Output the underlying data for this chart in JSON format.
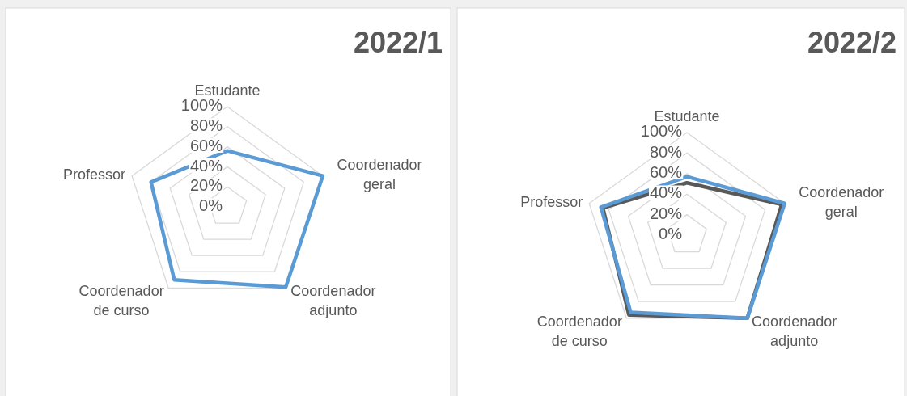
{
  "chart_data": [
    {
      "type": "radar",
      "title": "2022/1",
      "categories": [
        "Estudante",
        "Coordenador geral",
        "Coordenador adjunto",
        "Coordenador de curso",
        "Professor"
      ],
      "ylim": [
        0,
        100
      ],
      "yticks": [
        {
          "value": 0,
          "label": "0%"
        },
        {
          "value": 20,
          "label": "20%"
        },
        {
          "value": 40,
          "label": "40%"
        },
        {
          "value": 60,
          "label": "60%"
        },
        {
          "value": 80,
          "label": "80%"
        },
        {
          "value": 100,
          "label": "100%"
        }
      ],
      "grid": true,
      "series": [
        {
          "color": "#5b9bd5",
          "values": [
            56,
            100,
            99,
            90,
            80
          ]
        }
      ]
    },
    {
      "type": "radar",
      "title": "2022/2",
      "categories": [
        "Estudante",
        "Coordenador geral",
        "Coordenador adjunto",
        "Coordenador de curso",
        "Professor"
      ],
      "ylim": [
        0,
        100
      ],
      "yticks": [
        {
          "value": 0,
          "label": "0%"
        },
        {
          "value": 20,
          "label": "20%"
        },
        {
          "value": 40,
          "label": "40%"
        },
        {
          "value": 60,
          "label": "60%"
        },
        {
          "value": 80,
          "label": "80%"
        },
        {
          "value": 100,
          "label": "100%"
        }
      ],
      "grid": true,
      "series": [
        {
          "color": "#595959",
          "values": [
            51,
            97,
            100,
            96,
            86
          ]
        },
        {
          "color": "#5b9bd5",
          "values": [
            57,
            100,
            100,
            93,
            88
          ]
        }
      ]
    }
  ]
}
